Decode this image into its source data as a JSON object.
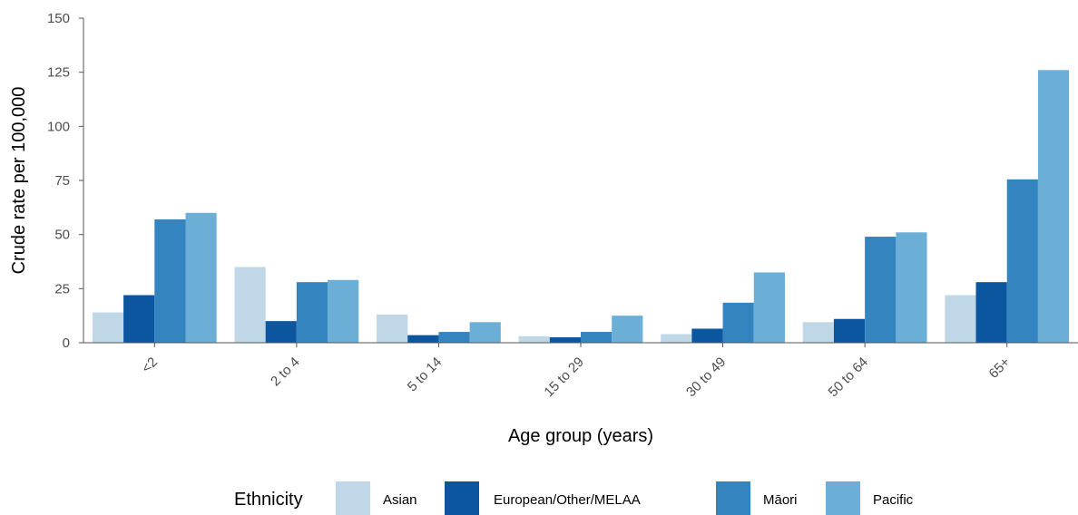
{
  "chart_data": {
    "type": "bar",
    "xlabel": "Age group (years)",
    "ylabel": "Crude rate per 100,000",
    "ylim": [
      0,
      150
    ],
    "yticks": [
      0,
      25,
      50,
      75,
      100,
      125,
      150
    ],
    "grid": false,
    "legend": {
      "title": "Ethnicity",
      "placement": "bottom"
    },
    "categories": [
      "<2",
      "2 to 4",
      "5 to 14",
      "15 to 29",
      "30 to 49",
      "50 to 64",
      "65+"
    ],
    "series": [
      {
        "name": "Asian",
        "color": "#c0d7e8",
        "values": [
          14,
          35,
          13,
          3,
          4,
          9.5,
          22
        ]
      },
      {
        "name": "European/Other/MELAA",
        "color": "#0c56a0",
        "values": [
          22,
          10,
          3.5,
          2.5,
          6.5,
          11,
          28
        ]
      },
      {
        "name": "Māori",
        "color": "#3484c0",
        "values": [
          57,
          28,
          5,
          5,
          18.5,
          49,
          75.5
        ]
      },
      {
        "name": "Pacific",
        "color": "#6baed6",
        "values": [
          60,
          29,
          9.5,
          12.5,
          32.5,
          51,
          126
        ]
      }
    ]
  }
}
